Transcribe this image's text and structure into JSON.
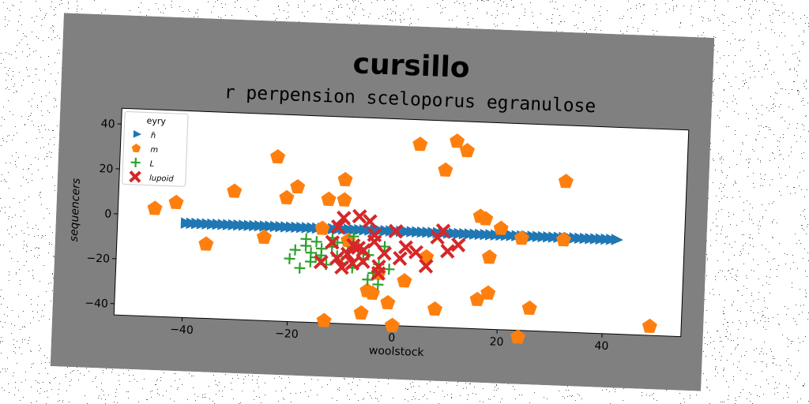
{
  "chart_data": {
    "type": "scatter",
    "title": "cursillo",
    "subtitle": "r perpension sceloporus egranulose",
    "xlabel": "woolstock",
    "ylabel": "sequencers",
    "xlim": [
      -53,
      55
    ],
    "ylim": [
      -45,
      47
    ],
    "xticks": [
      -40,
      -20,
      0,
      20,
      40
    ],
    "yticks": [
      -40,
      -20,
      0,
      20,
      40
    ],
    "xtick_labels": [
      "−40",
      "−20",
      "0",
      "20",
      "40"
    ],
    "ytick_labels": [
      "−40",
      "−20",
      "0",
      "20",
      "40"
    ],
    "grid": false,
    "legend_title": "eyry",
    "legend_position": "top-left",
    "background_color": "#808080",
    "series": [
      {
        "name": "ɦ",
        "marker": "triangle-right",
        "color": "#1f77b4",
        "x": [
          -40,
          -39,
          -38,
          -37,
          -36,
          -35,
          -34,
          -33,
          -32,
          -31,
          -30,
          -29,
          -28,
          -27,
          -26,
          -25,
          -24,
          -23,
          -22,
          -21,
          -20,
          -19,
          -18,
          -17,
          -16,
          -15,
          -14,
          -13,
          -12,
          -11,
          -10,
          -9,
          -8,
          -7,
          -6,
          -5,
          -4,
          -3,
          -2,
          -1,
          0,
          1,
          2,
          3,
          4,
          5,
          6,
          7,
          8,
          9,
          10,
          11,
          12,
          13,
          14,
          15,
          16,
          17,
          18,
          19,
          20,
          21,
          22,
          23,
          24,
          25,
          26,
          27,
          28,
          29,
          30,
          31,
          32,
          33,
          34,
          35,
          36,
          37,
          38,
          39,
          40,
          41,
          42
        ],
        "y": [
          -3,
          -3,
          -3,
          -3,
          -3,
          -3,
          -3,
          -3,
          -3,
          -3,
          -3,
          -3,
          -3,
          -3,
          -3,
          -3,
          -3,
          -3,
          -3,
          -3,
          -3,
          -3,
          -3,
          -3,
          -3,
          -3,
          -3,
          -3,
          -3,
          -3,
          -3,
          -3,
          -3,
          -3,
          -3,
          -3,
          -3,
          -3,
          -3,
          -3,
          -3,
          -3,
          -3,
          -3,
          -3,
          -3,
          -3,
          -3,
          -3,
          -3,
          -3,
          -3,
          -3,
          -3,
          -3,
          -3,
          -3,
          -3,
          -3,
          -3,
          -3,
          -3,
          -3,
          -3,
          -3,
          -3,
          -3,
          -3,
          -3,
          -3,
          -3,
          -3,
          -3,
          -3,
          -3,
          -3,
          -3,
          -3,
          -3,
          -3,
          -3,
          -3,
          -3
        ]
      },
      {
        "name": "m",
        "marker": "pentagon",
        "color": "#ff7f0e",
        "x": [
          -46,
          -42,
          -36,
          -31,
          -25,
          -23,
          -21,
          -19,
          -13,
          -10,
          -13,
          -10,
          -9,
          -14,
          -6,
          -5,
          -4,
          -3,
          -1,
          0,
          2,
          4,
          6,
          8,
          9,
          11,
          13,
          16,
          16,
          17,
          18,
          18,
          20,
          24,
          24,
          26,
          32,
          32,
          49
        ],
        "y": [
          3,
          6,
          -12,
          12,
          -8,
          28,
          10,
          15,
          -44,
          19,
          10,
          10,
          -8,
          -3,
          -40,
          -30,
          -31,
          -22,
          -35,
          -45,
          -25,
          36,
          -14,
          -37,
          25,
          38,
          34,
          -32,
          5,
          4,
          -13,
          -29,
          0,
          -4,
          -48,
          -35,
          22,
          -4,
          -41
        ]
      },
      {
        "name": "L",
        "marker": "plus",
        "color": "#2ca02c",
        "x": [
          -20,
          -19,
          -18,
          -17,
          -17,
          -16,
          -16,
          -15,
          -15,
          -14,
          -13,
          -12,
          -11,
          -11,
          -10,
          -9,
          -8,
          -7,
          -6,
          -5,
          -4,
          -3,
          -2,
          -1,
          -5,
          -8,
          -12,
          -14,
          -3
        ],
        "y": [
          -17,
          -13,
          -21,
          -11,
          -8,
          -18,
          -14,
          -9,
          -16,
          -12,
          -19,
          -11,
          -9,
          -15,
          -18,
          -13,
          -20,
          -11,
          -16,
          -14,
          -22,
          -18,
          -10,
          -20,
          -25,
          -6,
          -7,
          -15,
          -27
        ]
      },
      {
        "name": "lupoid",
        "marker": "x",
        "color": "#d62728",
        "x": [
          -14,
          -12,
          -11,
          -10,
          -9,
          -8,
          -7,
          -6,
          -5,
          -4,
          -3,
          -10,
          -8,
          -6,
          -4,
          -2,
          0,
          2,
          4,
          6,
          8,
          10,
          12,
          9,
          -11,
          -7,
          -3,
          1
        ],
        "y": [
          -18,
          -9,
          -2,
          -20,
          -14,
          -18,
          3,
          -12,
          1,
          -8,
          -22,
          2,
          -10,
          -17,
          -5,
          -13,
          -3,
          -10,
          -12,
          -18,
          -5,
          -11,
          -8,
          -2,
          -16,
          -11,
          -19,
          -15
        ]
      }
    ]
  }
}
